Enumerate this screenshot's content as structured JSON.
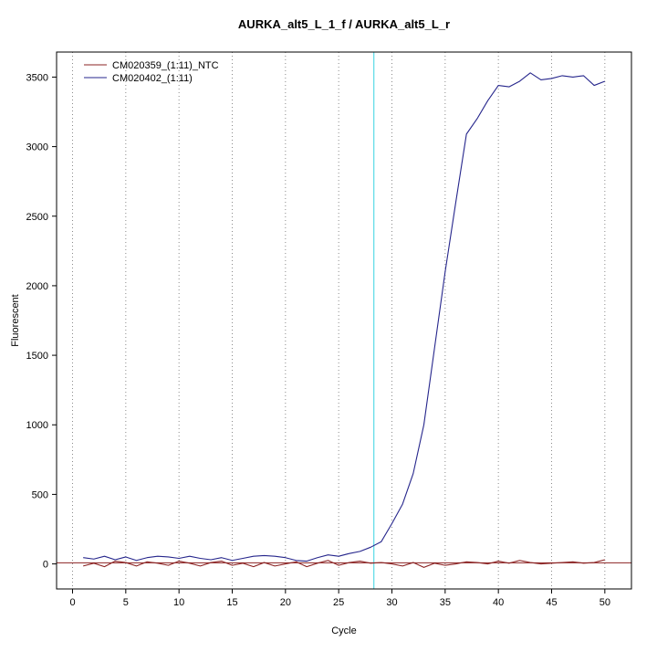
{
  "chart_data": {
    "type": "line",
    "title": "AURKA_alt5_L_1_f / AURKA_alt5_L_r",
    "xlabel": "Cycle",
    "ylabel": "Fluorescent",
    "xlim": [
      -1.5,
      52.5
    ],
    "ylim": [
      -180,
      3680
    ],
    "x_ticks": [
      0,
      5,
      10,
      15,
      20,
      25,
      30,
      35,
      40,
      45,
      50
    ],
    "y_ticks": [
      0,
      500,
      1000,
      1500,
      2000,
      2500,
      3000,
      3500
    ],
    "grid": "vertical-dotted",
    "grid_color": "#8a8a8a",
    "legend_position": "top-left",
    "threshold_line": {
      "y": 8,
      "color": "#8b2323"
    },
    "ct_line": {
      "x": 28.3,
      "color": "#66dde8"
    },
    "series": [
      {
        "name": "CM020359_(1:11)_NTC",
        "color": "#8b2323",
        "x_start": 1,
        "values": [
          -15,
          5,
          -20,
          20,
          10,
          -15,
          15,
          5,
          -10,
          20,
          5,
          -15,
          10,
          20,
          -10,
          5,
          -20,
          10,
          -15,
          0,
          15,
          -20,
          5,
          25,
          -10,
          10,
          20,
          5,
          10,
          0,
          -15,
          10,
          -25,
          5,
          -10,
          0,
          15,
          10,
          0,
          20,
          5,
          25,
          10,
          0,
          5,
          10,
          15,
          5,
          10,
          30
        ]
      },
      {
        "name": "CM020402_(1:11)",
        "color": "#26268c",
        "x_start": 1,
        "values": [
          45,
          35,
          55,
          30,
          50,
          25,
          45,
          55,
          50,
          40,
          55,
          40,
          30,
          45,
          25,
          40,
          55,
          60,
          55,
          45,
          25,
          20,
          45,
          65,
          55,
          75,
          90,
          120,
          160,
          290,
          430,
          650,
          1000,
          1550,
          2100,
          2600,
          3090,
          3200,
          3330,
          3440,
          3430,
          3470,
          3530,
          3480,
          3490,
          3510,
          3500,
          3510,
          3440,
          3470
        ]
      }
    ]
  }
}
